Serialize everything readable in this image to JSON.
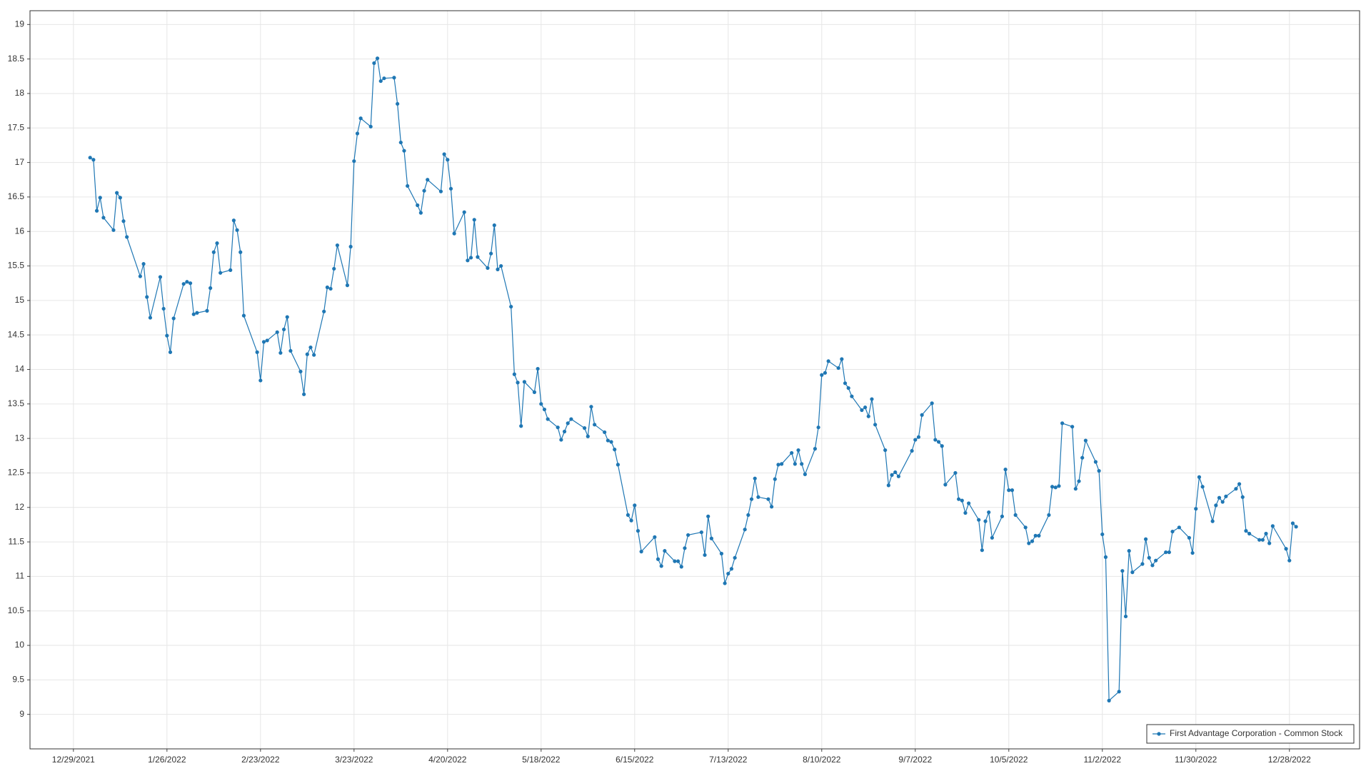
{
  "chart_data": {
    "type": "line",
    "x": [
      "2022-01-03",
      "2022-01-04",
      "2022-01-05",
      "2022-01-06",
      "2022-01-07",
      "2022-01-10",
      "2022-01-11",
      "2022-01-12",
      "2022-01-13",
      "2022-01-14",
      "2022-01-18",
      "2022-01-19",
      "2022-01-20",
      "2022-01-21",
      "2022-01-24",
      "2022-01-25",
      "2022-01-26",
      "2022-01-27",
      "2022-01-28",
      "2022-01-31",
      "2022-02-01",
      "2022-02-02",
      "2022-02-03",
      "2022-02-04",
      "2022-02-07",
      "2022-02-08",
      "2022-02-09",
      "2022-02-10",
      "2022-02-11",
      "2022-02-14",
      "2022-02-15",
      "2022-02-16",
      "2022-02-17",
      "2022-02-18",
      "2022-02-22",
      "2022-02-23",
      "2022-02-24",
      "2022-02-25",
      "2022-02-28",
      "2022-03-01",
      "2022-03-02",
      "2022-03-03",
      "2022-03-04",
      "2022-03-07",
      "2022-03-08",
      "2022-03-09",
      "2022-03-10",
      "2022-03-11",
      "2022-03-14",
      "2022-03-15",
      "2022-03-16",
      "2022-03-17",
      "2022-03-18",
      "2022-03-21",
      "2022-03-22",
      "2022-03-23",
      "2022-03-24",
      "2022-03-25",
      "2022-03-28",
      "2022-03-29",
      "2022-03-30",
      "2022-03-31",
      "2022-04-01",
      "2022-04-04",
      "2022-04-05",
      "2022-04-06",
      "2022-04-07",
      "2022-04-08",
      "2022-04-11",
      "2022-04-12",
      "2022-04-13",
      "2022-04-14",
      "2022-04-18",
      "2022-04-19",
      "2022-04-20",
      "2022-04-21",
      "2022-04-22",
      "2022-04-25",
      "2022-04-26",
      "2022-04-27",
      "2022-04-28",
      "2022-04-29",
      "2022-05-02",
      "2022-05-03",
      "2022-05-04",
      "2022-05-05",
      "2022-05-06",
      "2022-05-09",
      "2022-05-10",
      "2022-05-11",
      "2022-05-12",
      "2022-05-13",
      "2022-05-16",
      "2022-05-17",
      "2022-05-18",
      "2022-05-19",
      "2022-05-20",
      "2022-05-23",
      "2022-05-24",
      "2022-05-25",
      "2022-05-26",
      "2022-05-27",
      "2022-05-31",
      "2022-06-01",
      "2022-06-02",
      "2022-06-03",
      "2022-06-06",
      "2022-06-07",
      "2022-06-08",
      "2022-06-09",
      "2022-06-10",
      "2022-06-13",
      "2022-06-14",
      "2022-06-15",
      "2022-06-16",
      "2022-06-17",
      "2022-06-21",
      "2022-06-22",
      "2022-06-23",
      "2022-06-24",
      "2022-06-27",
      "2022-06-28",
      "2022-06-29",
      "2022-06-30",
      "2022-07-01",
      "2022-07-05",
      "2022-07-06",
      "2022-07-07",
      "2022-07-08",
      "2022-07-11",
      "2022-07-12",
      "2022-07-13",
      "2022-07-14",
      "2022-07-15",
      "2022-07-18",
      "2022-07-19",
      "2022-07-20",
      "2022-07-21",
      "2022-07-22",
      "2022-07-25",
      "2022-07-26",
      "2022-07-27",
      "2022-07-28",
      "2022-07-29",
      "2022-08-01",
      "2022-08-02",
      "2022-08-03",
      "2022-08-04",
      "2022-08-05",
      "2022-08-08",
      "2022-08-09",
      "2022-08-10",
      "2022-08-11",
      "2022-08-12",
      "2022-08-15",
      "2022-08-16",
      "2022-08-17",
      "2022-08-18",
      "2022-08-19",
      "2022-08-22",
      "2022-08-23",
      "2022-08-24",
      "2022-08-25",
      "2022-08-26",
      "2022-08-29",
      "2022-08-30",
      "2022-08-31",
      "2022-09-01",
      "2022-09-02",
      "2022-09-06",
      "2022-09-07",
      "2022-09-08",
      "2022-09-09",
      "2022-09-12",
      "2022-09-13",
      "2022-09-14",
      "2022-09-15",
      "2022-09-16",
      "2022-09-19",
      "2022-09-20",
      "2022-09-21",
      "2022-09-22",
      "2022-09-23",
      "2022-09-26",
      "2022-09-27",
      "2022-09-28",
      "2022-09-29",
      "2022-09-30",
      "2022-10-03",
      "2022-10-04",
      "2022-10-05",
      "2022-10-06",
      "2022-10-07",
      "2022-10-10",
      "2022-10-11",
      "2022-10-12",
      "2022-10-13",
      "2022-10-14",
      "2022-10-17",
      "2022-10-18",
      "2022-10-19",
      "2022-10-20",
      "2022-10-21",
      "2022-10-24",
      "2022-10-25",
      "2022-10-26",
      "2022-10-27",
      "2022-10-28",
      "2022-10-31",
      "2022-11-01",
      "2022-11-02",
      "2022-11-03",
      "2022-11-04",
      "2022-11-07",
      "2022-11-08",
      "2022-11-09",
      "2022-11-10",
      "2022-11-11",
      "2022-11-14",
      "2022-11-15",
      "2022-11-16",
      "2022-11-17",
      "2022-11-18",
      "2022-11-21",
      "2022-11-22",
      "2022-11-23",
      "2022-11-25",
      "2022-11-28",
      "2022-11-29",
      "2022-11-30",
      "2022-12-01",
      "2022-12-02",
      "2022-12-05",
      "2022-12-06",
      "2022-12-07",
      "2022-12-08",
      "2022-12-09",
      "2022-12-12",
      "2022-12-13",
      "2022-12-14",
      "2022-12-15",
      "2022-12-16",
      "2022-12-19",
      "2022-12-20",
      "2022-12-21",
      "2022-12-22",
      "2022-12-23",
      "2022-12-27",
      "2022-12-28",
      "2022-12-29",
      "2022-12-30"
    ],
    "series": [
      {
        "name": "First Advantage Corporation - Common Stock",
        "color": "#1f77b4",
        "values": [
          17.07,
          17.04,
          16.3,
          16.49,
          16.2,
          16.02,
          16.56,
          16.49,
          16.15,
          15.92,
          15.35,
          15.53,
          15.05,
          14.75,
          15.34,
          14.88,
          14.49,
          14.25,
          14.74,
          15.24,
          15.27,
          15.25,
          14.8,
          14.82,
          14.85,
          15.18,
          15.7,
          15.83,
          15.4,
          15.44,
          16.16,
          16.02,
          15.7,
          14.78,
          14.25,
          13.84,
          14.4,
          14.42,
          14.54,
          14.24,
          14.58,
          14.76,
          14.27,
          13.97,
          13.64,
          14.22,
          14.32,
          14.21,
          14.84,
          15.19,
          15.17,
          15.46,
          15.8,
          15.22,
          15.78,
          17.02,
          17.42,
          17.64,
          17.52,
          18.44,
          18.51,
          18.18,
          18.22,
          18.23,
          17.85,
          17.29,
          17.17,
          16.66,
          16.38,
          16.27,
          16.59,
          16.75,
          16.58,
          17.12,
          17.04,
          16.62,
          15.97,
          16.28,
          15.58,
          15.62,
          16.17,
          15.63,
          15.47,
          15.68,
          16.09,
          15.45,
          15.5,
          14.91,
          13.93,
          13.81,
          13.18,
          13.82,
          13.67,
          14.01,
          13.5,
          13.42,
          13.28,
          13.16,
          12.98,
          13.1,
          13.22,
          13.28,
          13.15,
          13.03,
          13.46,
          13.2,
          13.09,
          12.97,
          12.95,
          12.84,
          12.62,
          11.89,
          11.81,
          12.03,
          11.66,
          11.36,
          11.57,
          11.25,
          11.15,
          11.37,
          11.22,
          11.22,
          11.14,
          11.41,
          11.6,
          11.64,
          11.31,
          11.87,
          11.55,
          11.33,
          10.9,
          11.04,
          11.11,
          11.27,
          11.68,
          11.89,
          12.12,
          12.42,
          12.15,
          12.12,
          12.01,
          12.41,
          12.62,
          12.63,
          12.79,
          12.63,
          12.83,
          12.63,
          12.48,
          12.85,
          13.16,
          13.92,
          13.95,
          14.12,
          14.02,
          14.15,
          13.8,
          13.73,
          13.61,
          13.41,
          13.45,
          13.32,
          13.57,
          13.2,
          12.83,
          12.32,
          12.47,
          12.51,
          12.45,
          12.82,
          12.98,
          13.02,
          13.34,
          13.51,
          12.98,
          12.95,
          12.89,
          12.33,
          12.5,
          12.12,
          12.1,
          11.92,
          12.06,
          11.82,
          11.38,
          11.8,
          11.93,
          11.56,
          11.87,
          12.55,
          12.25,
          12.25,
          11.89,
          11.71,
          11.48,
          11.51,
          11.59,
          11.59,
          11.89,
          12.3,
          12.29,
          12.31,
          13.22,
          13.17,
          12.27,
          12.38,
          12.72,
          12.97,
          12.66,
          12.53,
          11.61,
          11.28,
          9.2,
          9.33,
          11.08,
          10.42,
          11.37,
          11.06,
          11.18,
          11.54,
          11.27,
          11.16,
          11.23,
          11.35,
          11.35,
          11.65,
          11.71,
          11.56,
          11.34,
          11.98,
          12.44,
          12.3,
          11.8,
          12.03,
          12.14,
          12.08,
          12.16,
          12.27,
          12.34,
          12.15,
          11.66,
          11.62,
          11.53,
          11.53,
          11.62,
          11.48,
          11.73,
          11.4,
          11.23,
          11.77,
          11.72
        ]
      }
    ],
    "xlim": [
      "2021-12-16",
      "2023-01-18"
    ],
    "xticks": [
      {
        "value": "2021-12-29",
        "label": "12/29/2021"
      },
      {
        "value": "2022-01-26",
        "label": "1/26/2022"
      },
      {
        "value": "2022-02-23",
        "label": "2/23/2022"
      },
      {
        "value": "2022-03-23",
        "label": "3/23/2022"
      },
      {
        "value": "2022-04-20",
        "label": "4/20/2022"
      },
      {
        "value": "2022-05-18",
        "label": "5/18/2022"
      },
      {
        "value": "2022-06-15",
        "label": "6/15/2022"
      },
      {
        "value": "2022-07-13",
        "label": "7/13/2022"
      },
      {
        "value": "2022-08-10",
        "label": "8/10/2022"
      },
      {
        "value": "2022-09-07",
        "label": "9/7/2022"
      },
      {
        "value": "2022-10-05",
        "label": "10/5/2022"
      },
      {
        "value": "2022-11-02",
        "label": "11/2/2022"
      },
      {
        "value": "2022-11-30",
        "label": "11/30/2022"
      },
      {
        "value": "2022-12-28",
        "label": "12/28/2022"
      }
    ],
    "ylim": [
      8.5,
      19.2
    ],
    "yticks": [
      9,
      9.5,
      10,
      10.5,
      11,
      11.5,
      12,
      12.5,
      13,
      13.5,
      14,
      14.5,
      15,
      15.5,
      16,
      16.5,
      17,
      17.5,
      18,
      18.5,
      19
    ],
    "grid": true,
    "legend": "bottom-right"
  }
}
